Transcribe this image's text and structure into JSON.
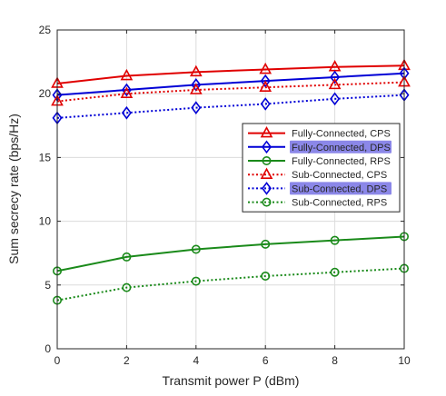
{
  "chart_data": {
    "type": "line",
    "title": "",
    "xlabel": "Transmit power P (dBm)",
    "ylabel": "Sum secrecy rate (bps/Hz)",
    "xlim": [
      0,
      10
    ],
    "ylim": [
      0,
      25
    ],
    "xticks": [
      "0",
      "2",
      "4",
      "6",
      "8",
      "10"
    ],
    "yticks": [
      "0",
      "5",
      "10",
      "15",
      "20",
      "25"
    ],
    "grid": true,
    "legend_position": "center-right",
    "x": [
      0,
      2,
      4,
      6,
      8,
      10
    ],
    "series": [
      {
        "name": "Fully-Connected, CPS",
        "color": "#e00000",
        "style": "solid",
        "marker": "triangle",
        "highlight": false,
        "values": [
          20.8,
          21.4,
          21.7,
          21.9,
          22.1,
          22.2
        ]
      },
      {
        "name": "Fully-Connected, DPS",
        "color": "#0000d6",
        "style": "solid",
        "marker": "diamond",
        "highlight": true,
        "values": [
          19.9,
          20.3,
          20.7,
          21.0,
          21.3,
          21.6
        ]
      },
      {
        "name": "Fully-Connected, RPS",
        "color": "#1a8a1a",
        "style": "solid",
        "marker": "circle",
        "highlight": false,
        "values": [
          6.1,
          7.2,
          7.8,
          8.2,
          8.5,
          8.8
        ]
      },
      {
        "name": "Sub-Connected, CPS",
        "color": "#e00000",
        "style": "dotted",
        "marker": "triangle",
        "highlight": false,
        "values": [
          19.4,
          20.0,
          20.3,
          20.5,
          20.7,
          20.9
        ]
      },
      {
        "name": "Sub-Connected, DPS",
        "color": "#0000d6",
        "style": "dotted",
        "marker": "diamond",
        "highlight": true,
        "values": [
          18.1,
          18.5,
          18.9,
          19.2,
          19.6,
          19.9
        ]
      },
      {
        "name": "Sub-Connected, RPS",
        "color": "#1a8a1a",
        "style": "dotted",
        "marker": "circle",
        "highlight": false,
        "values": [
          3.8,
          4.8,
          5.3,
          5.7,
          6.0,
          6.3
        ]
      }
    ]
  }
}
